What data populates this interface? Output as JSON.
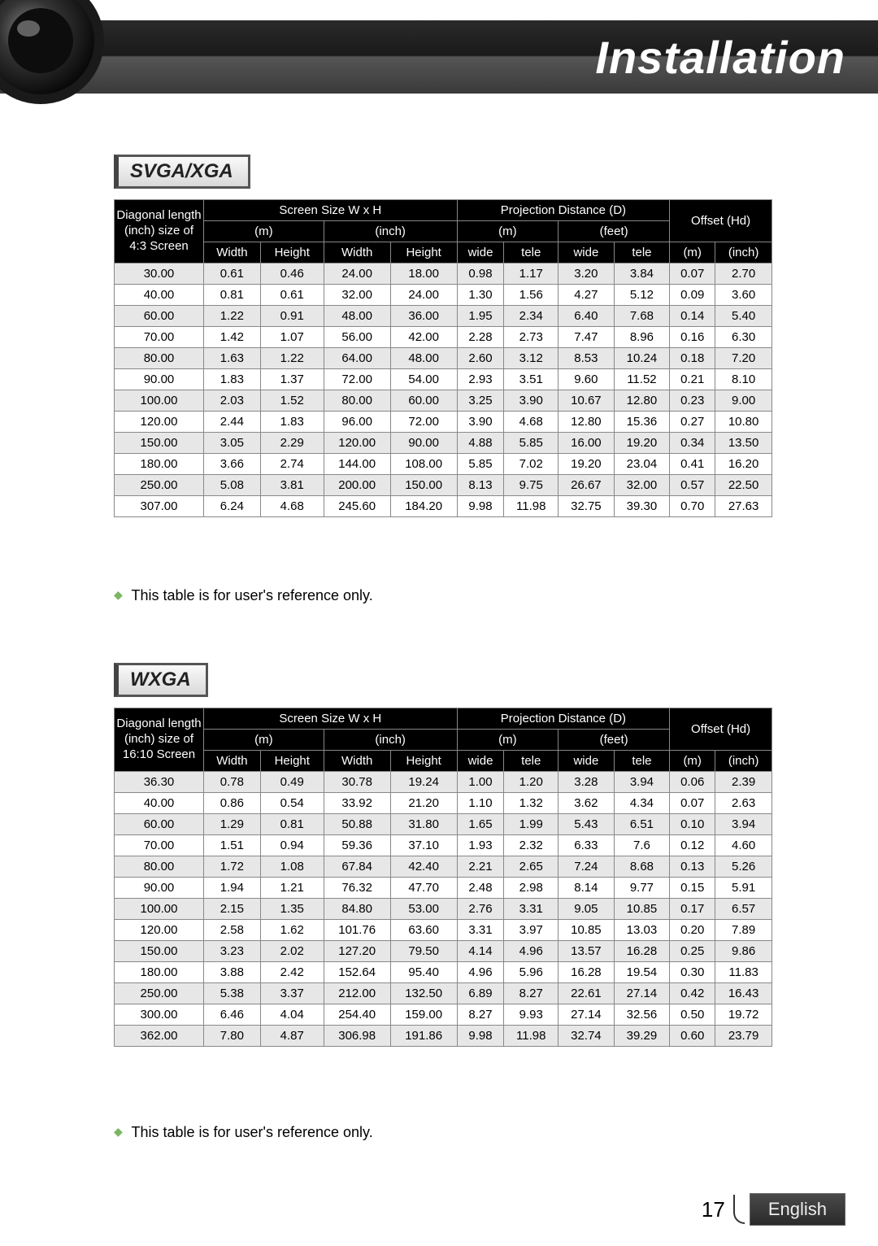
{
  "page": {
    "title": "Installation",
    "page_number": "17",
    "language_label": "English"
  },
  "section1": {
    "label": "SVGA/XGA",
    "note": "This table is for user's reference only.",
    "diag_header": "Diagonal length (inch) size of 4:3 Screen",
    "screen_size": "Screen Size W x H",
    "proj_dist": "Projection Distance (D)",
    "offset": "Offset (Hd)",
    "unit_m": "(m)",
    "unit_inch": "(inch)",
    "unit_feet": "(feet)",
    "col_width": "Width",
    "col_height": "Height",
    "col_wide": "wide",
    "col_tele": "tele",
    "rows": [
      [
        "30.00",
        "0.61",
        "0.46",
        "24.00",
        "18.00",
        "0.98",
        "1.17",
        "3.20",
        "3.84",
        "0.07",
        "2.70"
      ],
      [
        "40.00",
        "0.81",
        "0.61",
        "32.00",
        "24.00",
        "1.30",
        "1.56",
        "4.27",
        "5.12",
        "0.09",
        "3.60"
      ],
      [
        "60.00",
        "1.22",
        "0.91",
        "48.00",
        "36.00",
        "1.95",
        "2.34",
        "6.40",
        "7.68",
        "0.14",
        "5.40"
      ],
      [
        "70.00",
        "1.42",
        "1.07",
        "56.00",
        "42.00",
        "2.28",
        "2.73",
        "7.47",
        "8.96",
        "0.16",
        "6.30"
      ],
      [
        "80.00",
        "1.63",
        "1.22",
        "64.00",
        "48.00",
        "2.60",
        "3.12",
        "8.53",
        "10.24",
        "0.18",
        "7.20"
      ],
      [
        "90.00",
        "1.83",
        "1.37",
        "72.00",
        "54.00",
        "2.93",
        "3.51",
        "9.60",
        "11.52",
        "0.21",
        "8.10"
      ],
      [
        "100.00",
        "2.03",
        "1.52",
        "80.00",
        "60.00",
        "3.25",
        "3.90",
        "10.67",
        "12.80",
        "0.23",
        "9.00"
      ],
      [
        "120.00",
        "2.44",
        "1.83",
        "96.00",
        "72.00",
        "3.90",
        "4.68",
        "12.80",
        "15.36",
        "0.27",
        "10.80"
      ],
      [
        "150.00",
        "3.05",
        "2.29",
        "120.00",
        "90.00",
        "4.88",
        "5.85",
        "16.00",
        "19.20",
        "0.34",
        "13.50"
      ],
      [
        "180.00",
        "3.66",
        "2.74",
        "144.00",
        "108.00",
        "5.85",
        "7.02",
        "19.20",
        "23.04",
        "0.41",
        "16.20"
      ],
      [
        "250.00",
        "5.08",
        "3.81",
        "200.00",
        "150.00",
        "8.13",
        "9.75",
        "26.67",
        "32.00",
        "0.57",
        "22.50"
      ],
      [
        "307.00",
        "6.24",
        "4.68",
        "245.60",
        "184.20",
        "9.98",
        "11.98",
        "32.75",
        "39.30",
        "0.70",
        "27.63"
      ]
    ]
  },
  "section2": {
    "label": "WXGA",
    "note": "This table is for user's reference only.",
    "diag_header": "Diagonal length (inch) size of 16:10 Screen",
    "rows": [
      [
        "36.30",
        "0.78",
        "0.49",
        "30.78",
        "19.24",
        "1.00",
        "1.20",
        "3.28",
        "3.94",
        "0.06",
        "2.39"
      ],
      [
        "40.00",
        "0.86",
        "0.54",
        "33.92",
        "21.20",
        "1.10",
        "1.32",
        "3.62",
        "4.34",
        "0.07",
        "2.63"
      ],
      [
        "60.00",
        "1.29",
        "0.81",
        "50.88",
        "31.80",
        "1.65",
        "1.99",
        "5.43",
        "6.51",
        "0.10",
        "3.94"
      ],
      [
        "70.00",
        "1.51",
        "0.94",
        "59.36",
        "37.10",
        "1.93",
        "2.32",
        "6.33",
        "7.6",
        "0.12",
        "4.60"
      ],
      [
        "80.00",
        "1.72",
        "1.08",
        "67.84",
        "42.40",
        "2.21",
        "2.65",
        "7.24",
        "8.68",
        "0.13",
        "5.26"
      ],
      [
        "90.00",
        "1.94",
        "1.21",
        "76.32",
        "47.70",
        "2.48",
        "2.98",
        "8.14",
        "9.77",
        "0.15",
        "5.91"
      ],
      [
        "100.00",
        "2.15",
        "1.35",
        "84.80",
        "53.00",
        "2.76",
        "3.31",
        "9.05",
        "10.85",
        "0.17",
        "6.57"
      ],
      [
        "120.00",
        "2.58",
        "1.62",
        "101.76",
        "63.60",
        "3.31",
        "3.97",
        "10.85",
        "13.03",
        "0.20",
        "7.89"
      ],
      [
        "150.00",
        "3.23",
        "2.02",
        "127.20",
        "79.50",
        "4.14",
        "4.96",
        "13.57",
        "16.28",
        "0.25",
        "9.86"
      ],
      [
        "180.00",
        "3.88",
        "2.42",
        "152.64",
        "95.40",
        "4.96",
        "5.96",
        "16.28",
        "19.54",
        "0.30",
        "11.83"
      ],
      [
        "250.00",
        "5.38",
        "3.37",
        "212.00",
        "132.50",
        "6.89",
        "8.27",
        "22.61",
        "27.14",
        "0.42",
        "16.43"
      ],
      [
        "300.00",
        "6.46",
        "4.04",
        "254.40",
        "159.00",
        "8.27",
        "9.93",
        "27.14",
        "32.56",
        "0.50",
        "19.72"
      ],
      [
        "362.00",
        "7.80",
        "4.87",
        "306.98",
        "191.86",
        "9.98",
        "11.98",
        "32.74",
        "39.29",
        "0.60",
        "23.79"
      ]
    ]
  }
}
